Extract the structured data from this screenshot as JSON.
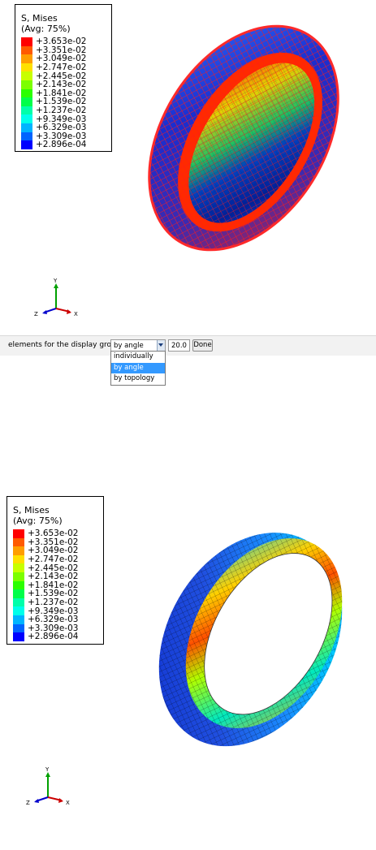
{
  "legend_top": {
    "title_line1": "S, Mises",
    "title_line2": "(Avg: 75%)",
    "levels": [
      {
        "label": "+3.653e-02",
        "color": "#ff0000"
      },
      {
        "label": "+3.351e-02",
        "color": "#ff5a00"
      },
      {
        "label": "+3.049e-02",
        "color": "#ff9e00"
      },
      {
        "label": "+2.747e-02",
        "color": "#ffe000"
      },
      {
        "label": "+2.445e-02",
        "color": "#c8ff00"
      },
      {
        "label": "+2.143e-02",
        "color": "#7cff00"
      },
      {
        "label": "+1.841e-02",
        "color": "#2bff00"
      },
      {
        "label": "+1.539e-02",
        "color": "#00ff4a"
      },
      {
        "label": "+1.237e-02",
        "color": "#00ffaa"
      },
      {
        "label": "+9.349e-03",
        "color": "#00ffea"
      },
      {
        "label": "+6.329e-03",
        "color": "#00b4ff"
      },
      {
        "label": "+3.309e-03",
        "color": "#0064ff"
      },
      {
        "label": "+2.896e-04",
        "color": "#0000ff"
      }
    ]
  },
  "legend_bottom": {
    "title_line1": "S, Mises",
    "title_line2": "(Avg: 75%)",
    "levels": [
      {
        "label": "+3.653e-02",
        "color": "#ff0000"
      },
      {
        "label": "+3.351e-02",
        "color": "#ff5a00"
      },
      {
        "label": "+3.049e-02",
        "color": "#ff9e00"
      },
      {
        "label": "+2.747e-02",
        "color": "#ffe000"
      },
      {
        "label": "+2.445e-02",
        "color": "#c8ff00"
      },
      {
        "label": "+2.143e-02",
        "color": "#7cff00"
      },
      {
        "label": "+1.841e-02",
        "color": "#2bff00"
      },
      {
        "label": "+1.539e-02",
        "color": "#00ff4a"
      },
      {
        "label": "+1.237e-02",
        "color": "#00ffaa"
      },
      {
        "label": "+9.349e-03",
        "color": "#00ffea"
      },
      {
        "label": "+6.329e-03",
        "color": "#00b4ff"
      },
      {
        "label": "+3.309e-03",
        "color": "#0064ff"
      },
      {
        "label": "+2.896e-04",
        "color": "#0000ff"
      }
    ]
  },
  "triad_top": {
    "y": "Y",
    "z": "Z",
    "x": "X"
  },
  "triad_bottom": {
    "y": "Y",
    "z": "Z",
    "x": "X"
  },
  "toolbar": {
    "prompt": "elements for the display group",
    "method_value": "by angle",
    "angle_value": "20.0",
    "done_label": "Done"
  },
  "method_dropdown": {
    "options": [
      "individually",
      "by angle",
      "by topology"
    ],
    "selected_index": 1
  },
  "colors": {
    "axis_y": "#00a000",
    "axis_x": "#cc0000",
    "axis_z": "#0000cc",
    "selection": "#3399ff"
  }
}
